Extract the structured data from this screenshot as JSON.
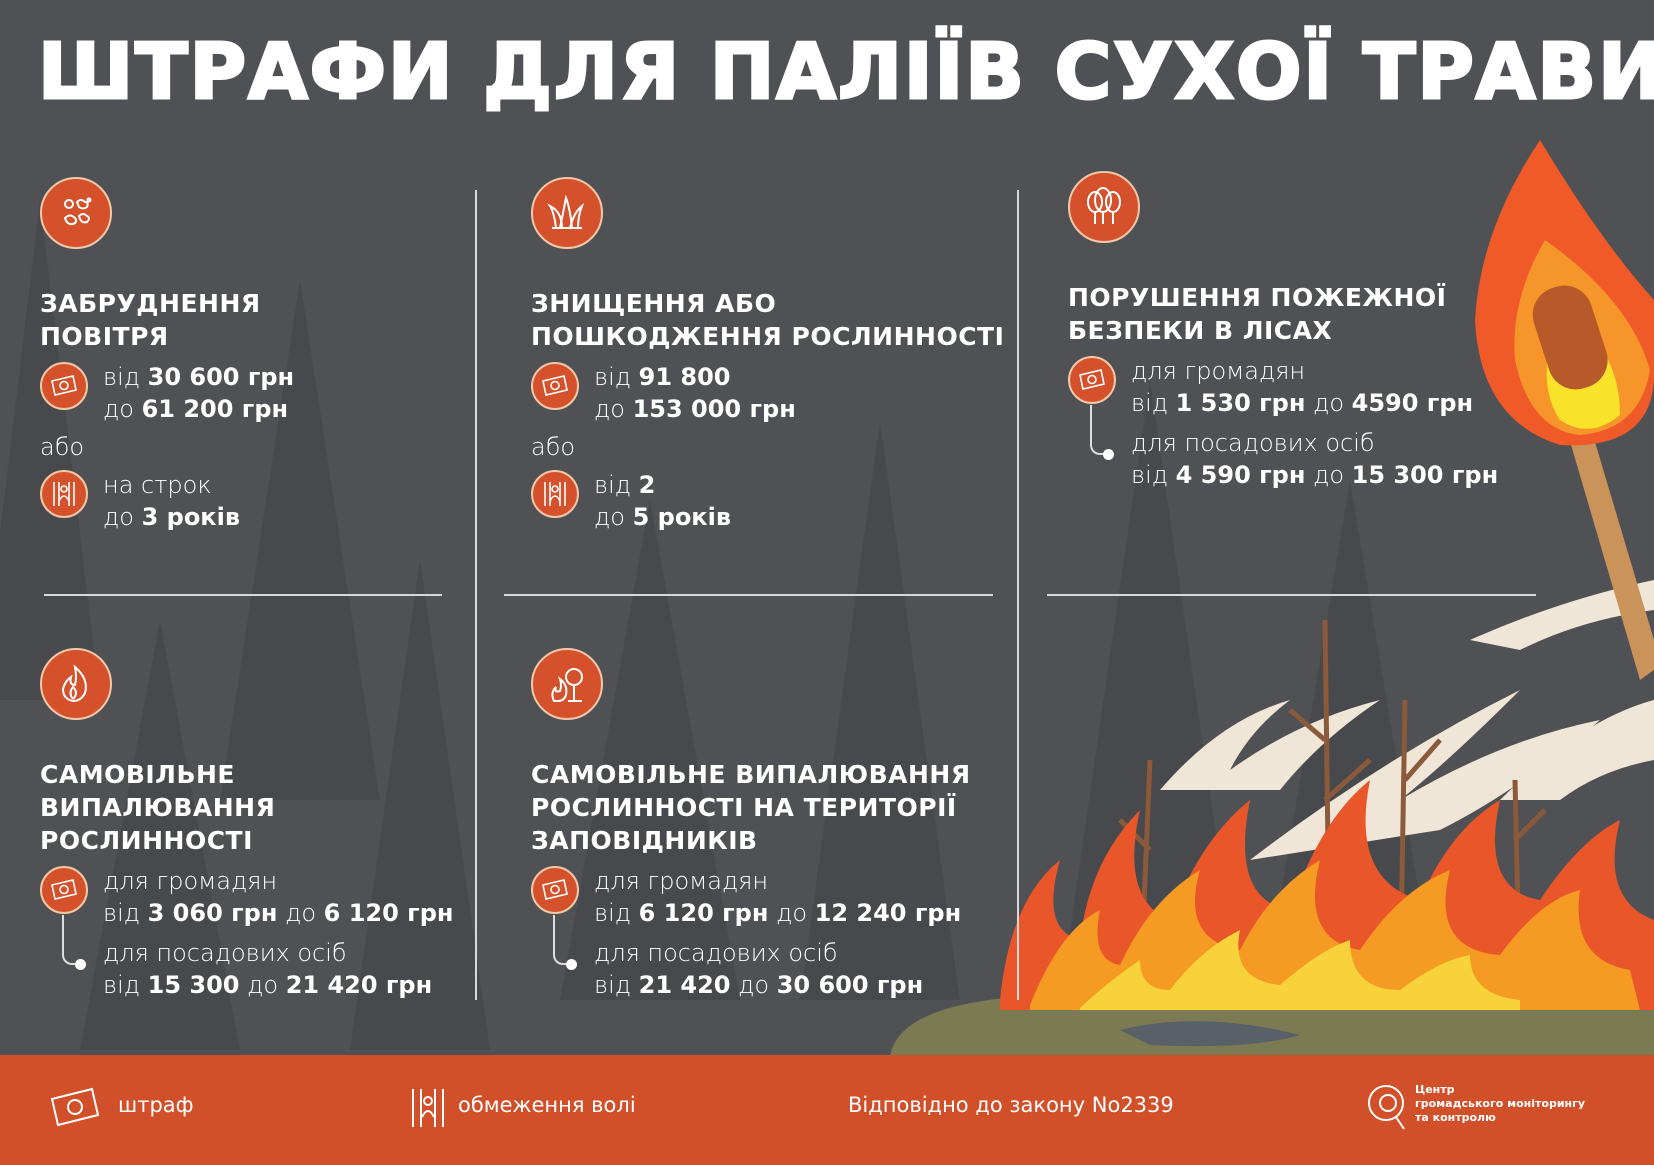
{
  "title": "ШТРАФИ ДЛЯ ПАЛІЇВ СУХОЇ ТРАВИ",
  "colors": {
    "background": "#505155",
    "accent": "#d1502a",
    "flame_orange": "#f28a1e",
    "flame_yellow": "#f7d42a"
  },
  "sections": [
    {
      "icon": "smoke-particles-icon",
      "heading": [
        "ЗАБРУДНЕННЯ",
        "ПОВІТРЯ"
      ],
      "items": [
        {
          "type": "fine",
          "icon": "money-icon",
          "groups": [
            [
              [
                {
                  "t": "від ",
                  "b": false
                },
                {
                  "t": "30 600 грн",
                  "b": true
                }
              ],
              [
                {
                  "t": "до ",
                  "b": false
                },
                {
                  "t": "61 200 грн",
                  "b": true
                }
              ]
            ]
          ]
        },
        {
          "type": "sep",
          "text": "або"
        },
        {
          "type": "fine",
          "icon": "prison-bars-icon",
          "groups": [
            [
              [
                {
                  "t": "на строк",
                  "b": false
                }
              ],
              [
                {
                  "t": "до ",
                  "b": false
                },
                {
                  "t": "3 років",
                  "b": true
                }
              ]
            ]
          ]
        }
      ]
    },
    {
      "icon": "grass-icon",
      "heading": [
        "ЗНИЩЕННЯ АБО",
        "ПОШКОДЖЕННЯ РОСЛИННОСТІ"
      ],
      "items": [
        {
          "type": "fine",
          "icon": "money-icon",
          "groups": [
            [
              [
                {
                  "t": "від ",
                  "b": false
                },
                {
                  "t": "91 800",
                  "b": true
                }
              ],
              [
                {
                  "t": "до ",
                  "b": false
                },
                {
                  "t": "153 000 грн",
                  "b": true
                }
              ]
            ]
          ]
        },
        {
          "type": "sep",
          "text": "або"
        },
        {
          "type": "fine",
          "icon": "prison-bars-icon",
          "groups": [
            [
              [
                {
                  "t": "від ",
                  "b": false
                },
                {
                  "t": "2",
                  "b": true
                }
              ],
              [
                {
                  "t": "до ",
                  "b": false
                },
                {
                  "t": "5 років",
                  "b": true
                }
              ]
            ]
          ]
        }
      ]
    },
    {
      "icon": "trees-icon",
      "heading": [
        "ПОРУШЕННЯ ПОЖЕЖНОЇ",
        "БЕЗПЕКИ В ЛІСАХ"
      ],
      "items": [
        {
          "type": "fine",
          "icon": "money-icon",
          "groups": [
            [
              [
                {
                  "t": "для громадян",
                  "b": false
                }
              ],
              [
                {
                  "t": "від ",
                  "b": false
                },
                {
                  "t": "1 530 грн",
                  "b": true
                },
                {
                  "t": " до ",
                  "b": false
                },
                {
                  "t": "4590 грн",
                  "b": true
                }
              ]
            ],
            [
              [
                {
                  "t": "для посадових осіб",
                  "b": false
                }
              ],
              [
                {
                  "t": "від ",
                  "b": false
                },
                {
                  "t": "4 590 грн",
                  "b": true
                },
                {
                  "t": " до ",
                  "b": false
                },
                {
                  "t": "15 300 грн",
                  "b": true
                }
              ]
            ]
          ]
        }
      ]
    },
    {
      "icon": "fire-icon",
      "heading": [
        "САМОВІЛЬНЕ",
        "ВИПАЛЮВАННЯ",
        "РОСЛИННОСТІ"
      ],
      "items": [
        {
          "type": "fine",
          "icon": "money-icon",
          "groups": [
            [
              [
                {
                  "t": "для громадян",
                  "b": false
                }
              ],
              [
                {
                  "t": "від ",
                  "b": false
                },
                {
                  "t": "3 060 грн",
                  "b": true
                },
                {
                  "t": " до ",
                  "b": false
                },
                {
                  "t": "6 120 грн",
                  "b": true
                }
              ]
            ],
            [
              [
                {
                  "t": "для посадових осіб",
                  "b": false
                }
              ],
              [
                {
                  "t": "від ",
                  "b": false
                },
                {
                  "t": "15 300",
                  "b": true
                },
                {
                  "t": " до ",
                  "b": false
                },
                {
                  "t": "21 420 грн",
                  "b": true
                }
              ]
            ]
          ]
        }
      ]
    },
    {
      "icon": "burning-tree-icon",
      "heading": [
        "САМОВІЛЬНЕ ВИПАЛЮВАННЯ",
        "РОСЛИННОСТІ НА ТЕРИТОРІЇ",
        "ЗАПОВІДНИКІВ"
      ],
      "items": [
        {
          "type": "fine",
          "icon": "money-icon",
          "groups": [
            [
              [
                {
                  "t": "для громадян",
                  "b": false
                }
              ],
              [
                {
                  "t": "від ",
                  "b": false
                },
                {
                  "t": "6 120 грн",
                  "b": true
                },
                {
                  "t": " до ",
                  "b": false
                },
                {
                  "t": "12 240 грн",
                  "b": true
                }
              ]
            ],
            [
              [
                {
                  "t": "для посадових осіб",
                  "b": false
                }
              ],
              [
                {
                  "t": "від ",
                  "b": false
                },
                {
                  "t": "21 420",
                  "b": true
                },
                {
                  "t": " до ",
                  "b": false
                },
                {
                  "t": "30 600 грн",
                  "b": true
                }
              ]
            ]
          ]
        }
      ]
    }
  ],
  "footer": {
    "fine_legend": "штраф",
    "prison_legend": "обмеження волі",
    "law": "Відповідно до закону No2339",
    "logo_lines": [
      "Центр",
      "громадського моніторингу",
      "та контролю"
    ]
  }
}
